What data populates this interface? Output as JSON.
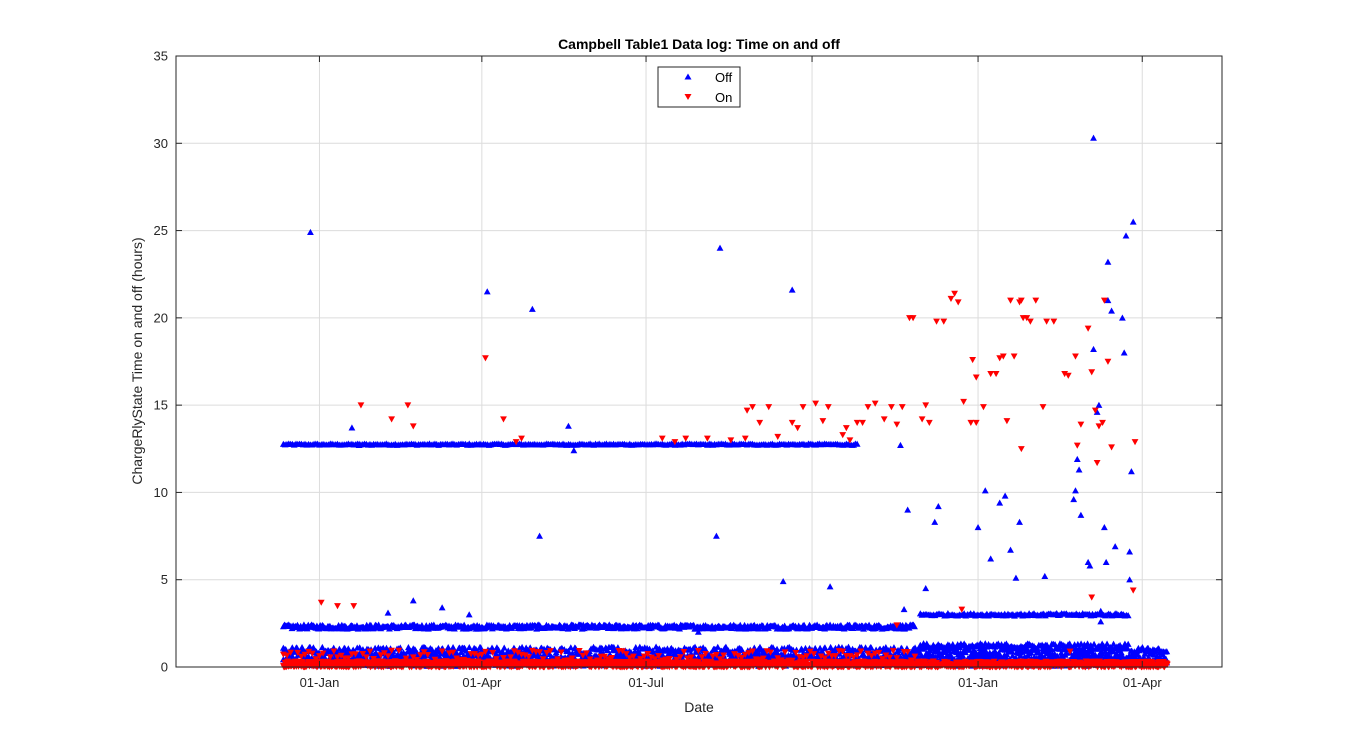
{
  "chart_data": {
    "type": "scatter",
    "title": "Campbell Table1 Data log: Time on and off",
    "xlabel": "Date",
    "ylabel": "ChargeRlyState Time on and off (hours)",
    "x_tick_labels": [
      "01-Jan",
      "01-Apr",
      "01-Jul",
      "01-Oct",
      "01-Jan",
      "01-Apr"
    ],
    "y_tick_labels": [
      "0",
      "5",
      "10",
      "15",
      "20",
      "25",
      "30",
      "35"
    ],
    "ylim": [
      0,
      35
    ],
    "grid": true,
    "legend_location": "top-center",
    "colors": {
      "off": "#0000ff",
      "on": "#ff0000",
      "axes": "#262626",
      "grid": "#dcdcdc"
    },
    "series": [
      {
        "name": "Off",
        "marker": "triangle-up",
        "color": "#0000ff",
        "bands": [
          {
            "y": 12.75,
            "x_start": -20,
            "x_end": 298,
            "step": 1.0,
            "jitter": 0.04
          },
          {
            "y": 2.3,
            "x_start": -20,
            "x_end": 330,
            "step": 0.6,
            "jitter": 0.12
          },
          {
            "y": 0.8,
            "x_start": -20,
            "x_end": 470,
            "step": 0.45,
            "jitter": 0.35
          },
          {
            "y": 0.3,
            "x_start": -20,
            "x_end": 470,
            "step": 0.6,
            "jitter": 0.25
          },
          {
            "y": 3.0,
            "x_start": 333,
            "x_end": 449,
            "step": 0.9,
            "jitter": 0.07
          },
          {
            "y": 1.2,
            "x_start": 333,
            "x_end": 449,
            "step": 0.9,
            "jitter": 0.15
          }
        ],
        "points": [
          [
            -5,
            24.9
          ],
          [
            93,
            21.5
          ],
          [
            118,
            20.5
          ],
          [
            222,
            24.0
          ],
          [
            262,
            21.6
          ],
          [
            122,
            7.5
          ],
          [
            220,
            7.5
          ],
          [
            138,
            13.8
          ],
          [
            141,
            12.4
          ],
          [
            18,
            13.7
          ],
          [
            22,
            12.7
          ],
          [
            38,
            3.1
          ],
          [
            52,
            3.8
          ],
          [
            68,
            3.4
          ],
          [
            83,
            3.0
          ],
          [
            210,
            2.0
          ],
          [
            257,
            4.9
          ],
          [
            283,
            4.6
          ],
          [
            322,
            12.7
          ],
          [
            324,
            3.3
          ],
          [
            326,
            9.0
          ],
          [
            336,
            4.5
          ],
          [
            341,
            8.3
          ],
          [
            343,
            9.2
          ],
          [
            357,
            3.0
          ],
          [
            365,
            8.0
          ],
          [
            369,
            10.1
          ],
          [
            372,
            6.2
          ],
          [
            377,
            9.4
          ],
          [
            380,
            9.8
          ],
          [
            383,
            6.7
          ],
          [
            386,
            5.1
          ],
          [
            388,
            8.3
          ],
          [
            396,
            3.0
          ],
          [
            402,
            5.2
          ],
          [
            418,
            9.6
          ],
          [
            419,
            10.1
          ],
          [
            420,
            11.9
          ],
          [
            421,
            11.3
          ],
          [
            422,
            8.7
          ],
          [
            426,
            6.0
          ],
          [
            427,
            5.8
          ],
          [
            429,
            30.3
          ],
          [
            429,
            18.2
          ],
          [
            431,
            14.6
          ],
          [
            432,
            15.0
          ],
          [
            433,
            2.6
          ],
          [
            433,
            3.2
          ],
          [
            435,
            8.0
          ],
          [
            436,
            6.0
          ],
          [
            437,
            23.2
          ],
          [
            437,
            21.0
          ],
          [
            439,
            20.4
          ],
          [
            441,
            6.9
          ],
          [
            444,
            3.0
          ],
          [
            445,
            20.0
          ],
          [
            446,
            18.0
          ],
          [
            447,
            24.7
          ],
          [
            449,
            5.0
          ],
          [
            449,
            6.6
          ],
          [
            450,
            11.2
          ],
          [
            451,
            25.5
          ],
          [
            452,
            0.8
          ]
        ]
      },
      {
        "name": "On",
        "marker": "triangle-down",
        "color": "#ff0000",
        "bands": [
          {
            "y": 0.15,
            "x_start": -20,
            "x_end": 470,
            "step": 0.3,
            "jitter": 0.18
          },
          {
            "y": 0.6,
            "x_start": -20,
            "x_end": 330,
            "step": 2.0,
            "jitter": 0.35
          }
        ],
        "points": [
          [
            1,
            3.7
          ],
          [
            10,
            3.5
          ],
          [
            19,
            3.5
          ],
          [
            23,
            15.0
          ],
          [
            40,
            14.2
          ],
          [
            49,
            15.0
          ],
          [
            52,
            13.8
          ],
          [
            92,
            17.7
          ],
          [
            102,
            14.2
          ],
          [
            109,
            12.9
          ],
          [
            112,
            13.1
          ],
          [
            190,
            13.1
          ],
          [
            197,
            12.9
          ],
          [
            203,
            13.1
          ],
          [
            215,
            13.1
          ],
          [
            228,
            13.0
          ],
          [
            236,
            13.1
          ],
          [
            237,
            14.7
          ],
          [
            240,
            14.9
          ],
          [
            244,
            14.0
          ],
          [
            249,
            14.9
          ],
          [
            254,
            13.2
          ],
          [
            262,
            14.0
          ],
          [
            265,
            13.7
          ],
          [
            268,
            14.9
          ],
          [
            275,
            15.1
          ],
          [
            279,
            14.1
          ],
          [
            282,
            14.9
          ],
          [
            290,
            13.3
          ],
          [
            292,
            13.7
          ],
          [
            294,
            13.0
          ],
          [
            298,
            14.0
          ],
          [
            301,
            14.0
          ],
          [
            304,
            14.9
          ],
          [
            308,
            15.1
          ],
          [
            313,
            14.2
          ],
          [
            317,
            14.9
          ],
          [
            320,
            13.9
          ],
          [
            323,
            14.9
          ],
          [
            327,
            20.0
          ],
          [
            329,
            20.0
          ],
          [
            334,
            14.2
          ],
          [
            336,
            15.0
          ],
          [
            338,
            14.0
          ],
          [
            342,
            19.8
          ],
          [
            346,
            19.8
          ],
          [
            350,
            21.1
          ],
          [
            352,
            21.4
          ],
          [
            354,
            20.9
          ],
          [
            357,
            15.2
          ],
          [
            361,
            14.0
          ],
          [
            364,
            14.0
          ],
          [
            362,
            17.6
          ],
          [
            364,
            16.6
          ],
          [
            368,
            14.9
          ],
          [
            372,
            16.8
          ],
          [
            375,
            16.8
          ],
          [
            377,
            17.7
          ],
          [
            379,
            17.8
          ],
          [
            381,
            14.1
          ],
          [
            385,
            17.8
          ],
          [
            388,
            20.9
          ],
          [
            390,
            20.0
          ],
          [
            392,
            20.0
          ],
          [
            394,
            19.8
          ],
          [
            383,
            21.0
          ],
          [
            389,
            21.0
          ],
          [
            397,
            21.0
          ],
          [
            401,
            14.9
          ],
          [
            403,
            19.8
          ],
          [
            407,
            19.8
          ],
          [
            413,
            16.8
          ],
          [
            415,
            16.7
          ],
          [
            419,
            17.8
          ],
          [
            420,
            12.7
          ],
          [
            422,
            13.9
          ],
          [
            426,
            19.4
          ],
          [
            428,
            16.9
          ],
          [
            430,
            14.7
          ],
          [
            431,
            11.7
          ],
          [
            432,
            13.8
          ],
          [
            434,
            14.0
          ],
          [
            435,
            21.0
          ],
          [
            437,
            17.5
          ],
          [
            439,
            12.6
          ],
          [
            389,
            12.5
          ],
          [
            428,
            4.0
          ],
          [
            451,
            4.4
          ],
          [
            452,
            12.9
          ],
          [
            416,
            0.9
          ],
          [
            320,
            2.4
          ],
          [
            356,
            3.3
          ]
        ]
      }
    ]
  }
}
